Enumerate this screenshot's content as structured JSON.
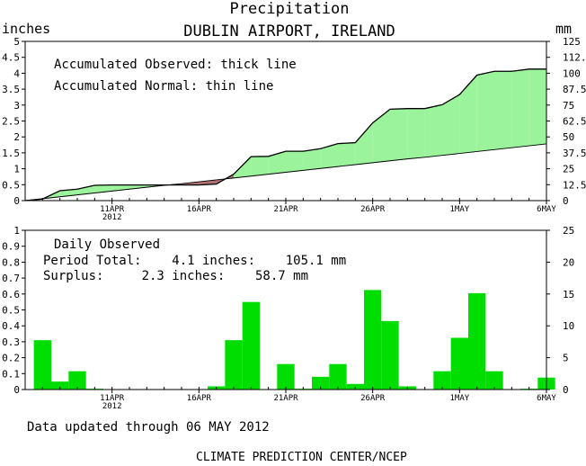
{
  "header": {
    "title": "Precipitation",
    "subtitle": "DUBLIN AIRPORT, IRELAND"
  },
  "chart_data": [
    {
      "type": "area",
      "ylabel": "inches",
      "ylabel_right": "mm",
      "ylim": [
        0,
        5
      ],
      "ylim_right": [
        0,
        125
      ],
      "yticks": [
        "0",
        "0.5",
        "1",
        "1.5",
        "2",
        "2.5",
        "3",
        "3.5",
        "4",
        "4.5",
        "5"
      ],
      "yticks_right": [
        "0",
        "12.5",
        "25",
        "37.5",
        "50",
        "62.5",
        "75",
        "87.5",
        "100",
        "112.5",
        "125"
      ],
      "x": [
        "Apr 6",
        "Apr 7",
        "Apr 8",
        "Apr 9",
        "Apr 10",
        "Apr 11",
        "Apr 12",
        "Apr 13",
        "Apr 14",
        "Apr 15",
        "Apr 16",
        "Apr 17",
        "Apr 18",
        "Apr 19",
        "Apr 20",
        "Apr 21",
        "Apr 22",
        "Apr 23",
        "Apr 24",
        "Apr 25",
        "Apr 26",
        "Apr 27",
        "Apr 28",
        "Apr 29",
        "Apr 30",
        "May 1",
        "May 2",
        "May 3",
        "May 4",
        "May 5",
        "May 6"
      ],
      "xticks": [
        {
          "label": "11APR",
          "sub": "2012",
          "i": 5
        },
        {
          "label": "16APR",
          "sub": "",
          "i": 10
        },
        {
          "label": "21APR",
          "sub": "",
          "i": 15
        },
        {
          "label": "26APR",
          "sub": "",
          "i": 20
        },
        {
          "label": "1MAY",
          "sub": "",
          "i": 25
        },
        {
          "label": "6MAY",
          "sub": "",
          "i": 30
        }
      ],
      "annotations": [
        "Accumulated Observed: thick line",
        "Accumulated Normal: thin line"
      ],
      "series": [
        {
          "name": "Accumulated Observed",
          "values": [
            0.0,
            0.05,
            0.31,
            0.36,
            0.48,
            0.49,
            0.49,
            0.49,
            0.49,
            0.49,
            0.49,
            0.52,
            0.83,
            1.38,
            1.39,
            1.55,
            1.55,
            1.63,
            1.79,
            1.82,
            2.44,
            2.87,
            2.89,
            2.89,
            3.01,
            3.33,
            3.94,
            4.06,
            4.06,
            4.13,
            4.13
          ]
        },
        {
          "name": "Accumulated Normal",
          "values": [
            0.0,
            0.06,
            0.12,
            0.18,
            0.24,
            0.3,
            0.36,
            0.42,
            0.48,
            0.53,
            0.59,
            0.65,
            0.71,
            0.77,
            0.83,
            0.89,
            0.95,
            1.01,
            1.07,
            1.13,
            1.19,
            1.25,
            1.31,
            1.36,
            1.42,
            1.48,
            1.54,
            1.6,
            1.66,
            1.72,
            1.78
          ]
        }
      ],
      "colors": {
        "fill": "#9bf39b",
        "line": "#000000",
        "deficit": "#b07070"
      }
    },
    {
      "type": "bar",
      "ylim": [
        0,
        1
      ],
      "ylim_right": [
        0,
        25
      ],
      "yticks": [
        "0",
        "0.1",
        "0.2",
        "0.3",
        "0.4",
        "0.5",
        "0.6",
        "0.7",
        "0.8",
        "0.9",
        "1"
      ],
      "yticks_right": [
        "0",
        "5",
        "10",
        "15",
        "20",
        "25"
      ],
      "xticks": [
        {
          "label": "11APR",
          "sub": "2012",
          "i": 5
        },
        {
          "label": "16APR",
          "sub": "",
          "i": 10
        },
        {
          "label": "21APR",
          "sub": "",
          "i": 15
        },
        {
          "label": "26APR",
          "sub": "",
          "i": 20
        },
        {
          "label": "1MAY",
          "sub": "",
          "i": 25
        },
        {
          "label": "6MAY",
          "sub": "",
          "i": 30
        }
      ],
      "annotations": [
        "Daily Observed",
        "Period Total:    4.1 inches:    105.1 mm",
        "Surplus:     2.3 inches:    58.7 mm"
      ],
      "series": [
        {
          "name": "Daily Observed",
          "values": [
            0.0,
            0.31,
            0.05,
            0.115,
            0.005,
            0.0,
            0.0,
            0.0,
            0.0,
            0.0,
            0.0,
            0.02,
            0.31,
            0.55,
            0.0,
            0.16,
            0.005,
            0.08,
            0.16,
            0.035,
            0.625,
            0.43,
            0.02,
            0.0,
            0.115,
            0.325,
            0.605,
            0.115,
            0.0,
            0.005,
            0.075
          ]
        }
      ],
      "colors": {
        "bar": "#00dd00"
      }
    }
  ],
  "footer": {
    "updated": "Data updated through 06 MAY 2012",
    "credit": "CLIMATE PREDICTION CENTER/NCEP"
  }
}
